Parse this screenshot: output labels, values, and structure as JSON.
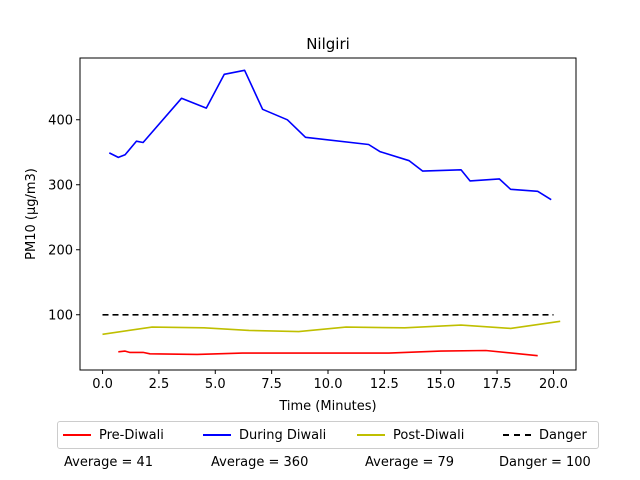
{
  "chart_data": {
    "type": "line",
    "title": "Nilgiri",
    "xlabel": "Time (Minutes)",
    "ylabel": "PM10 (µg/m3)",
    "xlim": [
      -1.0,
      21.0
    ],
    "ylim": [
      15,
      495
    ],
    "xticks": [
      0.0,
      2.5,
      5.0,
      7.5,
      10.0,
      12.5,
      15.0,
      17.5,
      20.0
    ],
    "xtick_labels": [
      "0.0",
      "2.5",
      "5.0",
      "7.5",
      "10.0",
      "12.5",
      "15.0",
      "17.5",
      "20.0"
    ],
    "yticks": [
      100,
      200,
      300,
      400
    ],
    "ytick_labels": [
      "100",
      "200",
      "300",
      "400"
    ],
    "grid": false,
    "legend_position": "below",
    "series": [
      {
        "name": "Pre-Diwali",
        "color": "#ff0000",
        "style": "solid",
        "x": [
          0.7,
          1.0,
          1.2,
          1.5,
          1.8,
          2.1,
          4.2,
          6.2,
          8.5,
          10.5,
          12.7,
          15.0,
          17.0,
          19.3
        ],
        "y": [
          43,
          44,
          42,
          42,
          42,
          40,
          39,
          41,
          41,
          41,
          41,
          44,
          45,
          37
        ]
      },
      {
        "name": "During Diwali",
        "color": "#0000ff",
        "style": "solid",
        "x": [
          0.3,
          0.7,
          1.0,
          1.5,
          1.8,
          3.5,
          4.6,
          5.4,
          6.3,
          7.1,
          8.2,
          9.0,
          11.8,
          12.3,
          13.6,
          14.2,
          15.9,
          16.3,
          17.6,
          18.1,
          19.3,
          19.9
        ],
        "y": [
          349,
          342,
          346,
          367,
          365,
          433,
          418,
          470,
          476,
          416,
          400,
          373,
          362,
          351,
          337,
          321,
          323,
          306,
          309,
          293,
          290,
          277
        ]
      },
      {
        "name": "Post-Diwali",
        "color": "#bfbf00",
        "style": "solid",
        "x": [
          0.0,
          2.2,
          4.5,
          6.5,
          8.7,
          10.8,
          13.4,
          15.9,
          18.1,
          20.3
        ],
        "y": [
          70,
          81,
          80,
          76,
          74,
          81,
          80,
          84,
          79,
          90
        ]
      },
      {
        "name": "Danger",
        "color": "#000000",
        "style": "dashed",
        "x": [
          0.0,
          20.0
        ],
        "y": [
          100,
          100
        ]
      }
    ],
    "averages": [
      "Average = 41",
      "Average = 360",
      "Average = 79",
      "Danger = 100"
    ]
  }
}
